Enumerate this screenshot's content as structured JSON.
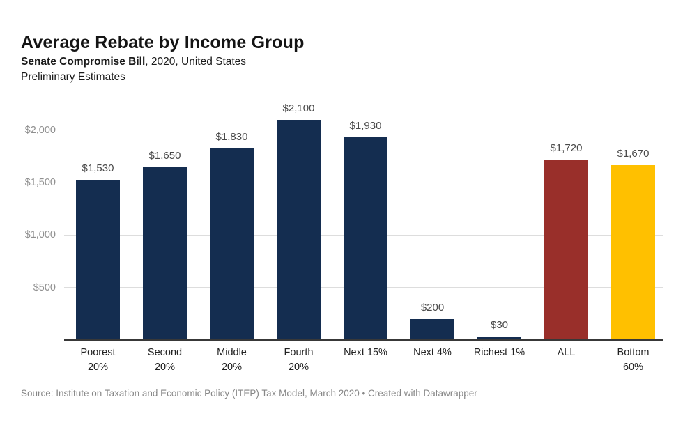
{
  "header": {
    "title": "Average Rebate by Income Group",
    "subtitle_bold": "Senate Compromise Bill",
    "subtitle_rest": ", 2020, United States",
    "subtitle_line2": "Preliminary Estimates"
  },
  "footer": {
    "source": "Source: Institute on Taxation and Economic Policy (ITEP) Tax Model, March 2020 • Created with Datawrapper"
  },
  "colors": {
    "bar_navy": "#142d50",
    "bar_red": "#992f2a",
    "bar_yellow": "#ffc000",
    "gridline": "#dddddd",
    "axis_line": "#383838",
    "tick_label": "#8f8f8f",
    "value_label": "#494949",
    "category_label": "#222222"
  },
  "chart_data": {
    "type": "bar",
    "title": "Average Rebate by Income Group",
    "subtitle": "Senate Compromise Bill, 2020, United States — Preliminary Estimates",
    "xlabel": "",
    "ylabel": "",
    "grid": true,
    "legend": "none",
    "ylim": [
      0,
      2312
    ],
    "y_ticks": [
      500,
      1000,
      1500,
      2000
    ],
    "y_tick_labels": [
      "$500",
      "$1,000",
      "$1,500",
      "$2,000"
    ],
    "categories": [
      "Poorest 20%",
      "Second 20%",
      "Middle 20%",
      "Fourth 20%",
      "Next 15%",
      "Next 4%",
      "Richest 1%",
      "ALL",
      "Bottom 60%"
    ],
    "category_display": [
      "Poorest\n20%",
      "Second\n20%",
      "Middle\n20%",
      "Fourth\n20%",
      "Next 15%",
      "Next 4%",
      "Richest 1%",
      "ALL",
      "Bottom\n60%"
    ],
    "values": [
      1530,
      1650,
      1830,
      2100,
      1930,
      200,
      30,
      1720,
      1670
    ],
    "value_labels": [
      "$1,530",
      "$1,650",
      "$1,830",
      "$2,100",
      "$1,930",
      "$200",
      "$30",
      "$1,720",
      "$1,670"
    ],
    "bar_colors": [
      "#142d50",
      "#142d50",
      "#142d50",
      "#142d50",
      "#142d50",
      "#142d50",
      "#142d50",
      "#992f2a",
      "#ffc000"
    ]
  }
}
